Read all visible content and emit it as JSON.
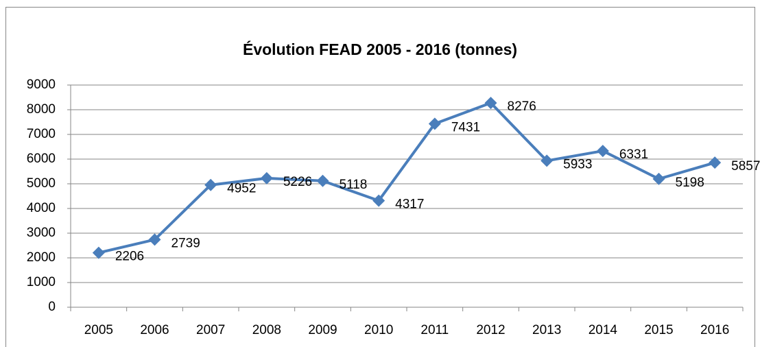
{
  "chart_data": {
    "type": "line",
    "title": "Évolution  FEAD 2005 - 2016 (tonnes)",
    "categories": [
      "2005",
      "2006",
      "2007",
      "2008",
      "2009",
      "2010",
      "2011",
      "2012",
      "2013",
      "2014",
      "2015",
      "2016"
    ],
    "series": [
      {
        "name": "FEAD",
        "color": "#4a7ebb",
        "values": [
          2206,
          2739,
          4952,
          5226,
          5118,
          4317,
          7431,
          8276,
          5933,
          6331,
          5198,
          5857
        ]
      }
    ],
    "ylim": [
      0,
      9000
    ],
    "yticks": [
      0,
      1000,
      2000,
      3000,
      4000,
      5000,
      6000,
      7000,
      8000,
      9000
    ],
    "grid": true
  }
}
